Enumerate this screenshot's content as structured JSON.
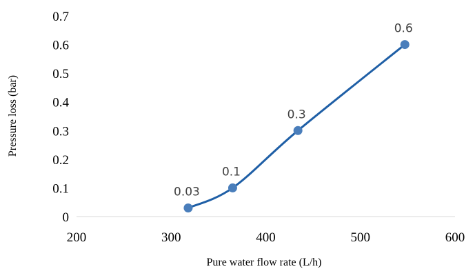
{
  "chart_data": {
    "type": "scatter",
    "xlabel": "Pure water flow rate (L/h)",
    "ylabel": "Pressure loss (bar)",
    "xlim": [
      200,
      600
    ],
    "ylim": [
      0,
      0.7
    ],
    "x_ticks": [
      "200",
      "300",
      "400",
      "500",
      "600"
    ],
    "y_ticks": [
      "0",
      "0.1",
      "0.2",
      "0.3",
      "0.4",
      "0.5",
      "0.6",
      "0.7"
    ],
    "grid": false,
    "legend": "none",
    "smoothed_line": true,
    "series": [
      {
        "color": "#4a7ebb",
        "line_color": "#1f5fa6",
        "points": [
          {
            "x": 318,
            "y": 0.03,
            "label": "0.03"
          },
          {
            "x": 365,
            "y": 0.1,
            "label": "0.1"
          },
          {
            "x": 434,
            "y": 0.3,
            "label": "0.3"
          },
          {
            "x": 547,
            "y": 0.6,
            "label": "0.6"
          }
        ]
      }
    ]
  }
}
